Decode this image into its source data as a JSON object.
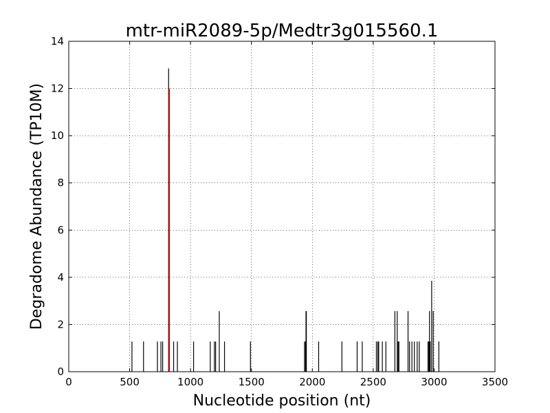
{
  "chart_data": {
    "type": "bar",
    "title": "mtr-miR2089-5p/Medtr3g015560.1",
    "xlabel": "Nucleotide position (nt)",
    "ylabel": "Degradome Abundance (TP10M)",
    "xlim": [
      0,
      3500
    ],
    "ylim": [
      0,
      14
    ],
    "xticks": [
      0,
      500,
      1000,
      1500,
      2000,
      2500,
      3000,
      3500
    ],
    "yticks": [
      0,
      2,
      4,
      6,
      8,
      10,
      12,
      14
    ],
    "grid": true,
    "colors": {
      "signal": "#000000",
      "highlight": "#cc0000"
    },
    "series": [
      {
        "x": [
          519,
          614,
          728,
          757,
          771,
          820,
          861,
          892,
          1025,
          1162,
          1196,
          1206,
          1236,
          1279,
          1492,
          1936,
          1944,
          1948,
          1951,
          2052,
          2243,
          2368,
          2410,
          2526,
          2538,
          2545,
          2575,
          2604,
          2678,
          2697,
          2705,
          2711,
          2786,
          2798,
          2818,
          2838,
          2861,
          2878,
          2950,
          2957,
          2962,
          2968,
          2980,
          2993,
          3039
        ],
        "values": [
          1.28,
          1.28,
          1.28,
          1.28,
          1.28,
          12.85,
          1.28,
          1.28,
          1.28,
          1.28,
          1.28,
          1.28,
          2.57,
          1.28,
          1.28,
          1.28,
          1.28,
          2.57,
          2.57,
          1.28,
          1.28,
          1.28,
          1.28,
          1.28,
          1.28,
          1.28,
          1.28,
          1.28,
          2.57,
          2.57,
          1.28,
          1.28,
          2.57,
          1.28,
          1.28,
          1.28,
          1.28,
          1.28,
          1.28,
          1.28,
          2.57,
          1.28,
          3.85,
          2.57,
          1.28
        ]
      },
      {
        "x": [
          824
        ],
        "values": [
          12.0
        ]
      }
    ]
  }
}
